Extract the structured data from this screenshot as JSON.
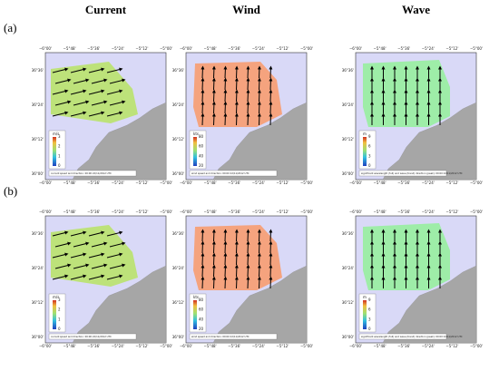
{
  "columns": [
    "Current",
    "Wind",
    "Wave"
  ],
  "rows": [
    "(a)",
    "(b)"
  ],
  "lon_ticks": [
    "−6°00'",
    "−5°48'",
    "−5°36'",
    "−5°24'",
    "−5°12'",
    "−5°00'"
  ],
  "lat_ticks": [
    "36°36'",
    "36°24'",
    "36°12'",
    "36°00'"
  ],
  "colorbars": [
    {
      "unit": "m/s",
      "ticks": [
        "0",
        "1",
        "2",
        "3"
      ]
    },
    {
      "unit": "kts",
      "ticks": [
        "20",
        "40",
        "60",
        "80"
      ]
    },
    {
      "unit": "m",
      "ticks": [
        "0",
        "3",
        "6",
        "9"
      ]
    }
  ],
  "captions": [
    "current speed and direction: 00:00 22/11/2012 UTC",
    "wind speed and direction: 00:00 22/11/2012 UTC",
    "significant wavelength (full) and wave (trend) direction (peak): 00:00 22/11/2012 UTC"
  ]
}
